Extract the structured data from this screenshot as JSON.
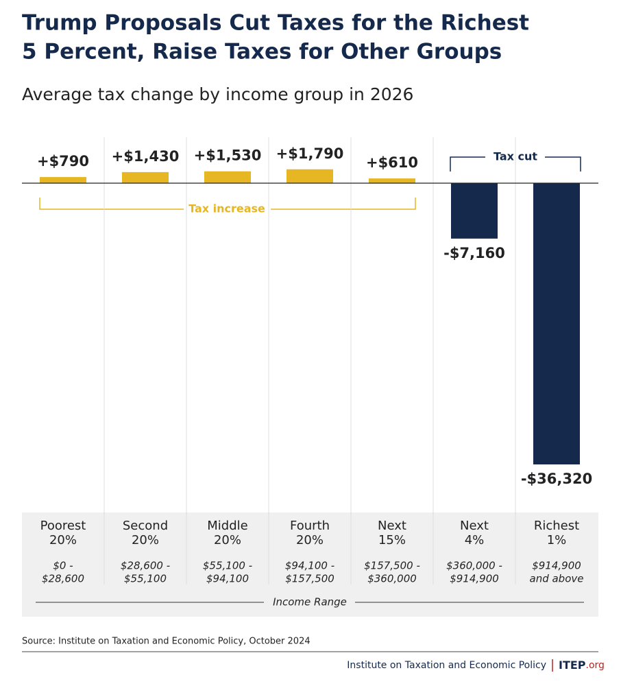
{
  "chart_data": {
    "type": "bar",
    "title": [
      "Trump Proposals Cut Taxes for the Richest",
      "5 Percent, Raise Taxes for Other Groups"
    ],
    "subtitle": "Average tax change by income group in 2026",
    "categories": [
      [
        "Poorest",
        "20%"
      ],
      [
        "Second",
        "20%"
      ],
      [
        "Middle",
        "20%"
      ],
      [
        "Fourth",
        "20%"
      ],
      [
        "Next",
        "15%"
      ],
      [
        "Next",
        "4%"
      ],
      [
        "Richest",
        "1%"
      ]
    ],
    "income_ranges": [
      [
        "$0 -",
        "$28,600"
      ],
      [
        "$28,600 -",
        "$55,100"
      ],
      [
        "$55,100 -",
        "$94,100"
      ],
      [
        "$94,100 -",
        "$157,500"
      ],
      [
        "$157,500 -",
        "$360,000"
      ],
      [
        "$360,000 -",
        "$914,900"
      ],
      [
        "$914,900",
        "and above"
      ]
    ],
    "x_label": "Income Range",
    "values": [
      790,
      1430,
      1530,
      1790,
      610,
      -7160,
      -36320
    ],
    "value_labels": [
      "+$790",
      "+$1,430",
      "+$1,530",
      "+$1,790",
      "+$610",
      "-$7,160",
      "-$36,320"
    ],
    "positive_color": "#e6b623",
    "negative_color": "#14294b",
    "annotations": {
      "increase": "Tax increase",
      "cut": "Tax cut"
    },
    "source": "Source: Institute on Taxation and Economic Policy, October 2024",
    "footer": {
      "org": "Institute on Taxation and Economic Policy",
      "logo": "ITEP",
      "logo_suffix": ".org"
    }
  }
}
